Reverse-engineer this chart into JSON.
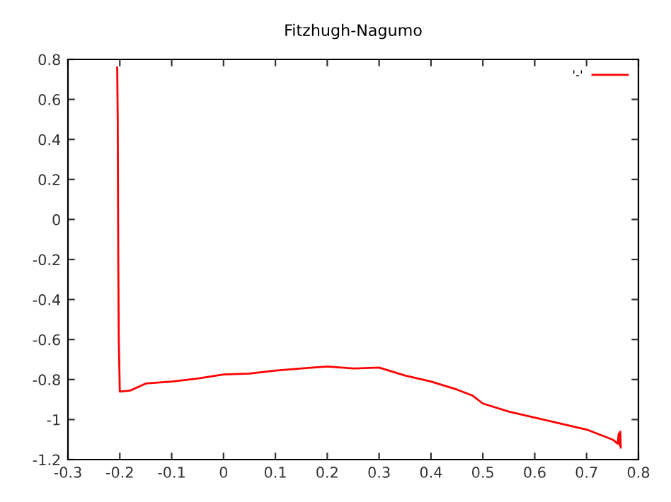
{
  "chart_data": {
    "type": "line",
    "title": "Fitzhugh-Nagumo",
    "series": [
      {
        "name": "'-'",
        "color": "#ff0000",
        "x": [
          -0.205,
          -0.204,
          -0.203,
          -0.202,
          -0.2,
          -0.18,
          -0.15,
          -0.1,
          -0.05,
          0,
          0.05,
          0.1,
          0.15,
          0.2,
          0.25,
          0.3,
          0.35,
          0.4,
          0.45,
          0.48,
          0.5,
          0.55,
          0.6,
          0.65,
          0.7,
          0.73,
          0.75,
          0.76,
          0.762,
          0.764,
          0.765,
          0.766
        ],
        "values": [
          0.76,
          0.5,
          -0.2,
          -0.6,
          -0.86,
          -0.855,
          -0.82,
          -0.81,
          -0.795,
          -0.775,
          -0.77,
          -0.755,
          -0.745,
          -0.735,
          -0.745,
          -0.74,
          -0.78,
          -0.81,
          -0.85,
          -0.88,
          -0.92,
          -0.96,
          -0.99,
          -1.02,
          -1.05,
          -1.08,
          -1.1,
          -1.12,
          -1.07,
          -1.13,
          -1.06,
          -1.14
        ]
      }
    ],
    "xlim": [
      -0.3,
      0.8
    ],
    "xticks": [
      -0.3,
      -0.2,
      -0.1,
      0,
      0.1,
      0.2,
      0.3,
      0.4,
      0.5,
      0.6,
      0.7,
      0.8
    ],
    "ylim": [
      -1.2,
      0.8
    ],
    "yticks": [
      -1.2,
      -1,
      -0.8,
      -0.6,
      -0.4,
      -0.2,
      0,
      0.2,
      0.4,
      0.6,
      0.8
    ],
    "grid": false,
    "legend": "top right",
    "marker": "none",
    "line_style": "solid"
  }
}
